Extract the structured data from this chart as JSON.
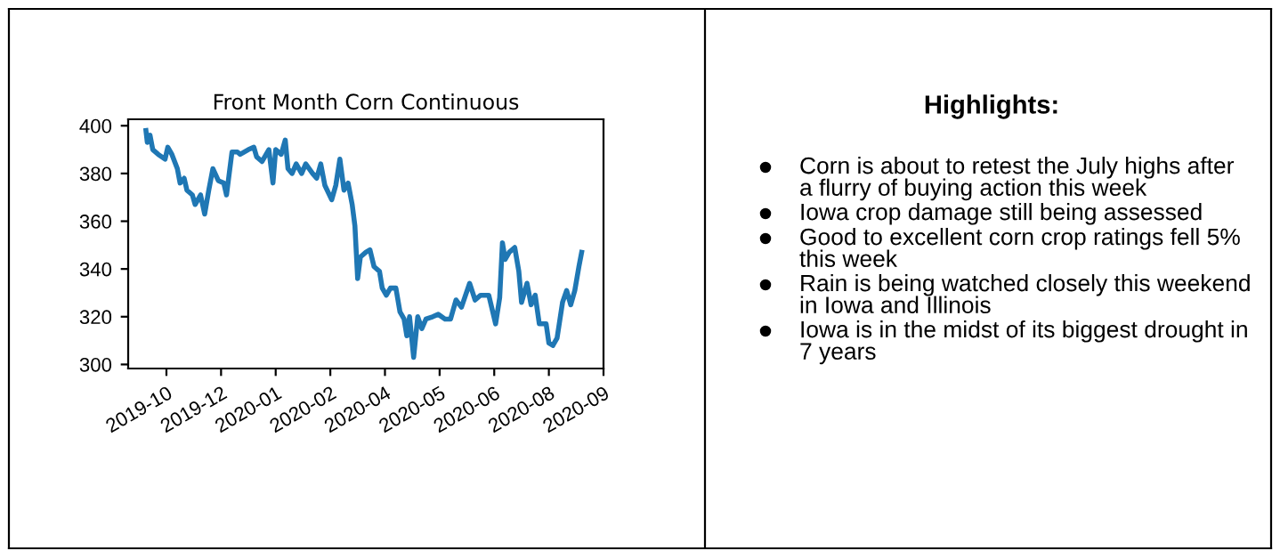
{
  "chart_data": [
    {
      "type": "line",
      "title": "Front Month Corn Continuous",
      "color": "#1f77b4",
      "x": [
        "2019-10-16",
        "2019-10-17",
        "2019-10-19",
        "2019-10-21",
        "2019-10-25",
        "2019-10-30",
        "2019-11-01",
        "2019-11-04",
        "2019-11-08",
        "2019-11-10",
        "2019-11-13",
        "2019-11-15",
        "2019-11-19",
        "2019-11-21",
        "2019-11-25",
        "2019-11-28",
        "2019-12-01",
        "2019-12-04",
        "2019-12-08",
        "2019-12-12",
        "2019-12-14",
        "2019-12-18",
        "2019-12-22",
        "2019-12-24",
        "2019-12-30",
        "2020-01-03",
        "2020-01-05",
        "2020-01-09",
        "2020-01-14",
        "2020-01-17",
        "2020-01-19",
        "2020-01-23",
        "2020-01-26",
        "2020-01-28",
        "2020-01-31",
        "2020-02-03",
        "2020-02-07",
        "2020-02-10",
        "2020-02-15",
        "2020-02-18",
        "2020-02-21",
        "2020-02-24",
        "2020-02-29",
        "2020-03-03",
        "2020-03-06",
        "2020-03-09",
        "2020-03-12",
        "2020-03-15",
        "2020-03-17",
        "2020-03-19",
        "2020-03-21",
        "2020-03-25",
        "2020-03-28",
        "2020-03-31",
        "2020-04-04",
        "2020-04-06",
        "2020-04-09",
        "2020-04-12",
        "2020-04-16",
        "2020-04-19",
        "2020-04-22",
        "2020-04-24",
        "2020-04-26",
        "2020-04-29",
        "2020-05-02",
        "2020-05-05",
        "2020-05-08",
        "2020-05-13",
        "2020-05-17",
        "2020-05-22",
        "2020-05-26",
        "2020-05-30",
        "2020-06-03",
        "2020-06-06",
        "2020-06-09",
        "2020-06-13",
        "2020-06-17",
        "2020-06-23",
        "2020-06-28",
        "2020-07-01",
        "2020-07-03",
        "2020-07-05",
        "2020-07-08",
        "2020-07-12",
        "2020-07-15",
        "2020-07-17",
        "2020-07-21",
        "2020-07-24",
        "2020-07-27",
        "2020-07-30",
        "2020-08-04",
        "2020-08-06",
        "2020-08-09",
        "2020-08-12",
        "2020-08-16",
        "2020-08-19",
        "2020-08-22",
        "2020-08-25",
        "2020-08-28",
        "2020-08-30"
      ],
      "values": [
        398,
        393,
        396,
        390,
        388,
        386,
        391,
        388,
        382,
        376,
        378,
        373,
        371,
        367,
        371,
        363,
        373,
        382,
        377,
        376,
        371,
        389,
        389,
        388,
        390,
        391,
        387,
        385,
        390,
        376,
        390,
        388,
        394,
        382,
        380,
        384,
        380,
        384,
        380,
        378,
        384,
        375,
        369,
        375,
        386,
        373,
        376,
        367,
        358,
        336,
        345,
        347,
        348,
        341,
        339,
        332,
        329,
        332,
        332,
        322,
        319,
        312,
        320,
        303,
        320,
        315,
        319,
        320,
        321,
        319,
        319,
        327,
        324,
        329,
        334,
        327,
        329,
        329,
        317,
        328,
        351,
        344,
        347,
        349,
        339,
        326,
        334,
        325,
        329,
        317,
        317,
        309,
        308,
        311,
        326,
        331,
        325,
        331,
        341,
        347
      ],
      "xlim": [
        "2019-10-03",
        "2020-09-15"
      ],
      "xticks": [
        {
          "value": "2019-10-31",
          "label": "2019-10"
        },
        {
          "value": "2019-12-10",
          "label": "2019-12"
        },
        {
          "value": "2020-01-19",
          "label": "2020-01"
        },
        {
          "value": "2020-02-28",
          "label": "2020-02"
        },
        {
          "value": "2020-04-08",
          "label": "2020-04"
        },
        {
          "value": "2020-05-18",
          "label": "2020-05"
        },
        {
          "value": "2020-06-27",
          "label": "2020-06"
        },
        {
          "value": "2020-08-06",
          "label": "2020-08"
        },
        {
          "value": "2020-09-15",
          "label": "2020-09"
        }
      ],
      "ylim": [
        298.3,
        402.7
      ],
      "yticks": [
        300,
        320,
        340,
        360,
        380,
        400
      ]
    },
    {
      "type": "other",
      "title": "Highlights:",
      "annotations": [
        "Corn is about to retest the July highs after a flurry of buying action this week",
        "Iowa crop damage still being assessed",
        "Good to excellent corn crop ratings fell 5% this week",
        "Rain is being watched closely this weekend in Iowa and Illinois",
        "Iowa is in the midst of its biggest drought in 7 years"
      ]
    }
  ]
}
